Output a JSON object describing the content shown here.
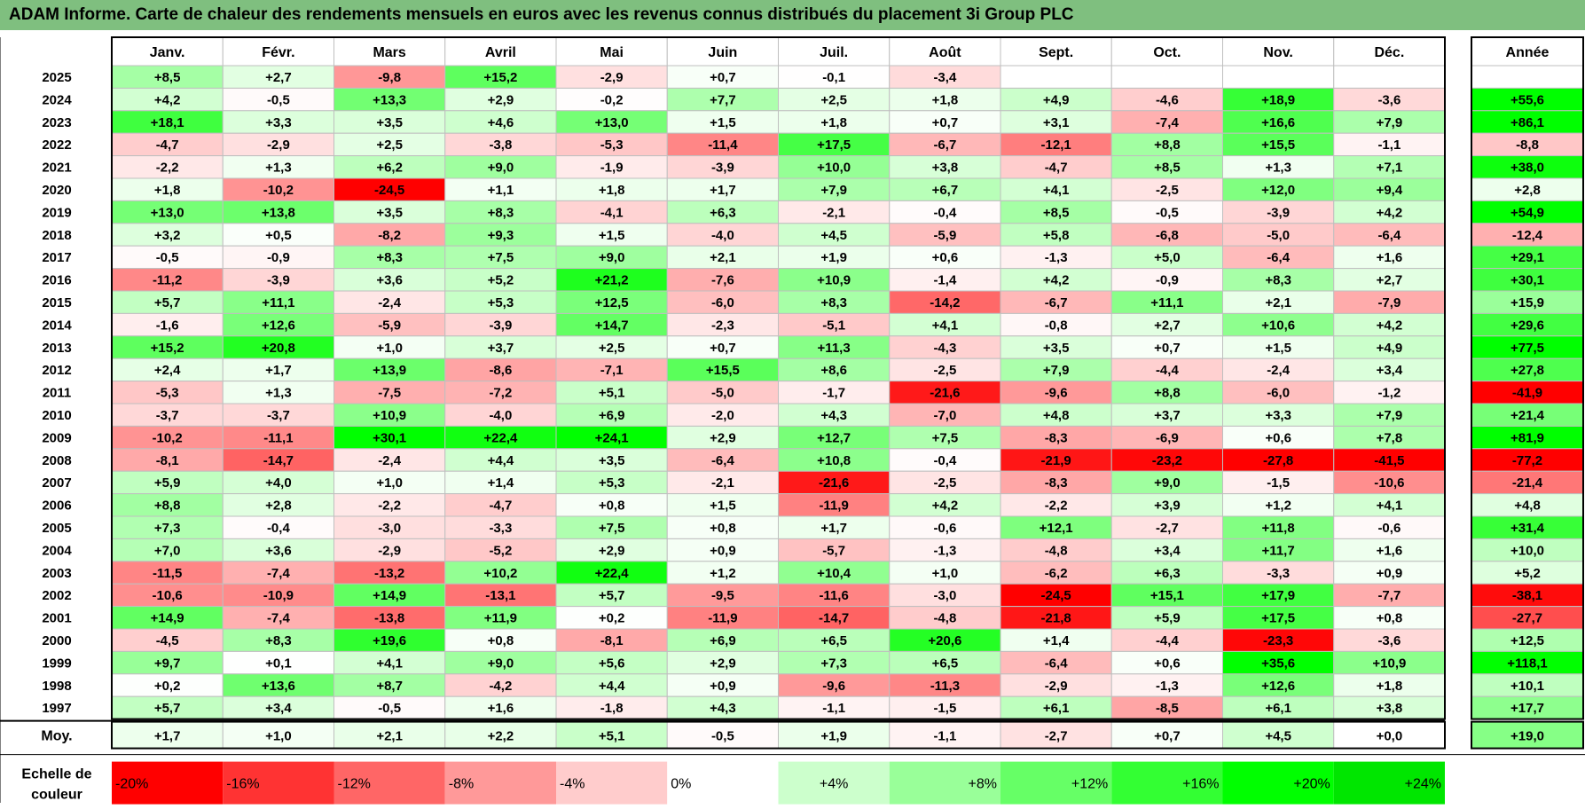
{
  "title": "ADAM Informe. Carte de chaleur des rendements mensuels en euros avec les revenus connus distribués du placement 3i Group PLC",
  "chart_data": {
    "type": "heatmap",
    "columns": [
      "Janv.",
      "Févr.",
      "Mars",
      "Avril",
      "Mai",
      "Juin",
      "Juil.",
      "Août",
      "Sept.",
      "Oct.",
      "Nov.",
      "Déc."
    ],
    "year_header": "Année",
    "rows": [
      {
        "label": "2025",
        "values": [
          "+8,5",
          "+2,7",
          "-9,8",
          "+15,2",
          "-2,9",
          "+0,7",
          "-0,1",
          "-3,4",
          "",
          "",
          "",
          ""
        ],
        "year": ""
      },
      {
        "label": "2024",
        "values": [
          "+4,2",
          "-0,5",
          "+13,3",
          "+2,9",
          "-0,2",
          "+7,7",
          "+2,5",
          "+1,8",
          "+4,9",
          "-4,6",
          "+18,9",
          "-3,6"
        ],
        "year": "+55,6"
      },
      {
        "label": "2023",
        "values": [
          "+18,1",
          "+3,3",
          "+3,5",
          "+4,6",
          "+13,0",
          "+1,5",
          "+1,8",
          "+0,7",
          "+3,1",
          "-7,4",
          "+16,6",
          "+7,9"
        ],
        "year": "+86,1"
      },
      {
        "label": "2022",
        "values": [
          "-4,7",
          "-2,9",
          "+2,5",
          "-3,8",
          "-5,3",
          "-11,4",
          "+17,5",
          "-6,7",
          "-12,1",
          "+8,8",
          "+15,5",
          "-1,1"
        ],
        "year": "-8,8"
      },
      {
        "label": "2021",
        "values": [
          "-2,2",
          "+1,3",
          "+6,2",
          "+9,0",
          "-1,9",
          "-3,9",
          "+10,0",
          "+3,8",
          "-4,7",
          "+8,5",
          "+1,3",
          "+7,1"
        ],
        "year": "+38,0"
      },
      {
        "label": "2020",
        "values": [
          "+1,8",
          "-10,2",
          "-24,5",
          "+1,1",
          "+1,8",
          "+1,7",
          "+7,9",
          "+6,7",
          "+4,1",
          "-2,5",
          "+12,0",
          "+9,4"
        ],
        "year": "+2,8"
      },
      {
        "label": "2019",
        "values": [
          "+13,0",
          "+13,8",
          "+3,5",
          "+8,3",
          "-4,1",
          "+6,3",
          "-2,1",
          "-0,4",
          "+8,5",
          "-0,5",
          "-3,9",
          "+4,2"
        ],
        "year": "+54,9"
      },
      {
        "label": "2018",
        "values": [
          "+3,2",
          "+0,5",
          "-8,2",
          "+9,3",
          "+1,5",
          "-4,0",
          "+4,5",
          "-5,9",
          "+5,8",
          "-6,8",
          "-5,0",
          "-6,4"
        ],
        "year": "-12,4"
      },
      {
        "label": "2017",
        "values": [
          "-0,5",
          "-0,9",
          "+8,3",
          "+7,5",
          "+9,0",
          "+2,1",
          "+1,9",
          "+0,6",
          "-1,3",
          "+5,0",
          "-6,4",
          "+1,6"
        ],
        "year": "+29,1"
      },
      {
        "label": "2016",
        "values": [
          "-11,2",
          "-3,9",
          "+3,6",
          "+5,2",
          "+21,2",
          "-7,6",
          "+10,9",
          "-1,4",
          "+4,2",
          "-0,9",
          "+8,3",
          "+2,7"
        ],
        "year": "+30,1"
      },
      {
        "label": "2015",
        "values": [
          "+5,7",
          "+11,1",
          "-2,4",
          "+5,3",
          "+12,5",
          "-6,0",
          "+8,3",
          "-14,2",
          "-6,7",
          "+11,1",
          "+2,1",
          "-7,9"
        ],
        "year": "+15,9"
      },
      {
        "label": "2014",
        "values": [
          "-1,6",
          "+12,6",
          "-5,9",
          "-3,9",
          "+14,7",
          "-2,3",
          "-5,1",
          "+4,1",
          "-0,8",
          "+2,7",
          "+10,6",
          "+4,2"
        ],
        "year": "+29,6"
      },
      {
        "label": "2013",
        "values": [
          "+15,2",
          "+20,8",
          "+1,0",
          "+3,7",
          "+2,5",
          "+0,7",
          "+11,3",
          "-4,3",
          "+3,5",
          "+0,7",
          "+1,5",
          "+4,9"
        ],
        "year": "+77,5"
      },
      {
        "label": "2012",
        "values": [
          "+2,4",
          "+1,7",
          "+13,9",
          "-8,6",
          "-7,1",
          "+15,5",
          "+8,6",
          "-2,5",
          "+7,9",
          "-4,4",
          "-2,4",
          "+3,4"
        ],
        "year": "+27,8"
      },
      {
        "label": "2011",
        "values": [
          "-5,3",
          "+1,3",
          "-7,5",
          "-7,2",
          "+5,1",
          "-5,0",
          "-1,7",
          "-21,6",
          "-9,6",
          "+8,8",
          "-6,0",
          "-1,2"
        ],
        "year": "-41,9"
      },
      {
        "label": "2010",
        "values": [
          "-3,7",
          "-3,7",
          "+10,9",
          "-4,0",
          "+6,9",
          "-2,0",
          "+4,3",
          "-7,0",
          "+4,8",
          "+3,7",
          "+3,3",
          "+7,9"
        ],
        "year": "+21,4"
      },
      {
        "label": "2009",
        "values": [
          "-10,2",
          "-11,1",
          "+30,1",
          "+22,4",
          "+24,1",
          "+2,9",
          "+12,7",
          "+7,5",
          "-8,3",
          "-6,9",
          "+0,6",
          "+7,8"
        ],
        "year": "+81,9"
      },
      {
        "label": "2008",
        "values": [
          "-8,1",
          "-14,7",
          "-2,4",
          "+4,4",
          "+3,5",
          "-6,4",
          "+10,8",
          "-0,4",
          "-21,9",
          "-23,2",
          "-27,8",
          "-41,5"
        ],
        "year": "-77,2"
      },
      {
        "label": "2007",
        "values": [
          "+5,9",
          "+4,0",
          "+1,0",
          "+1,4",
          "+5,3",
          "-2,1",
          "-21,6",
          "-2,5",
          "-8,3",
          "+9,0",
          "-1,5",
          "-10,6"
        ],
        "year": "-21,4"
      },
      {
        "label": "2006",
        "values": [
          "+8,8",
          "+2,8",
          "-2,2",
          "-4,7",
          "+0,8",
          "+1,5",
          "-11,9",
          "+4,2",
          "-2,2",
          "+3,9",
          "+1,2",
          "+4,1"
        ],
        "year": "+4,8"
      },
      {
        "label": "2005",
        "values": [
          "+7,3",
          "-0,4",
          "-3,0",
          "-3,3",
          "+7,5",
          "+0,8",
          "+1,7",
          "-0,6",
          "+12,1",
          "-2,7",
          "+11,8",
          "-0,6"
        ],
        "year": "+31,4"
      },
      {
        "label": "2004",
        "values": [
          "+7,0",
          "+3,6",
          "-2,9",
          "-5,2",
          "+2,9",
          "+0,9",
          "-5,7",
          "-1,3",
          "-4,8",
          "+3,4",
          "+11,7",
          "+1,6"
        ],
        "year": "+10,0"
      },
      {
        "label": "2003",
        "values": [
          "-11,5",
          "-7,4",
          "-13,2",
          "+10,2",
          "+22,4",
          "+1,2",
          "+10,4",
          "+1,0",
          "-6,2",
          "+6,3",
          "-3,3",
          "+0,9"
        ],
        "year": "+5,2"
      },
      {
        "label": "2002",
        "values": [
          "-10,6",
          "-10,9",
          "+14,9",
          "-13,1",
          "+5,7",
          "-9,5",
          "-11,6",
          "-3,0",
          "-24,5",
          "+15,1",
          "+17,9",
          "-7,7"
        ],
        "year": "-38,1"
      },
      {
        "label": "2001",
        "values": [
          "+14,9",
          "-7,4",
          "-13,8",
          "+11,9",
          "+0,2",
          "-11,9",
          "-14,7",
          "-4,8",
          "-21,8",
          "+5,9",
          "+17,5",
          "+0,8"
        ],
        "year": "-27,7"
      },
      {
        "label": "2000",
        "values": [
          "-4,5",
          "+8,3",
          "+19,6",
          "+0,8",
          "-8,1",
          "+6,9",
          "+6,5",
          "+20,6",
          "+1,4",
          "-4,4",
          "-23,3",
          "-3,6"
        ],
        "year": "+12,5"
      },
      {
        "label": "1999",
        "values": [
          "+9,7",
          "+0,1",
          "+4,1",
          "+9,0",
          "+5,6",
          "+2,9",
          "+7,3",
          "+6,5",
          "-6,4",
          "+0,6",
          "+35,6",
          "+10,9"
        ],
        "year": "+118,1"
      },
      {
        "label": "1998",
        "values": [
          "+0,2",
          "+13,6",
          "+8,7",
          "-4,2",
          "+4,4",
          "+0,9",
          "-9,6",
          "-11,3",
          "-2,9",
          "-1,3",
          "+12,6",
          "+1,8"
        ],
        "year": "+10,1"
      },
      {
        "label": "1997",
        "values": [
          "+5,7",
          "+3,4",
          "-0,5",
          "+1,6",
          "-1,8",
          "+4,3",
          "-1,1",
          "-1,5",
          "+6,1",
          "-8,5",
          "+6,1",
          "+3,8"
        ],
        "year": "+17,7"
      }
    ],
    "average": {
      "label": "Moy.",
      "values": [
        "+1,7",
        "+1,0",
        "+2,1",
        "+2,2",
        "+5,1",
        "-0,5",
        "+1,9",
        "-1,1",
        "-2,7",
        "+0,7",
        "+4,5",
        "+0,0"
      ],
      "year": "+19,0"
    },
    "scale": {
      "label_lines": [
        "Echelle de",
        "couleur"
      ],
      "stops": [
        {
          "label": "-20%",
          "color": "#ff0000"
        },
        {
          "label": "-16%",
          "color": "#ff3333"
        },
        {
          "label": "-12%",
          "color": "#ff6666"
        },
        {
          "label": "-8%",
          "color": "#ff9999"
        },
        {
          "label": "-4%",
          "color": "#ffcccc"
        },
        {
          "label": "0%",
          "color": "#ffffff"
        },
        {
          "label": "+4%",
          "color": "#ccffcc"
        },
        {
          "label": "+8%",
          "color": "#99ff99"
        },
        {
          "label": "+12%",
          "color": "#66ff66"
        },
        {
          "label": "+16%",
          "color": "#33ff33"
        },
        {
          "label": "+20%",
          "color": "#00ff00"
        },
        {
          "label": "+24%",
          "color": "#00e600"
        }
      ]
    },
    "colors": {
      "title_bar": "#7fbf7f",
      "grid": "#bfbfbf",
      "border": "#000000"
    }
  }
}
